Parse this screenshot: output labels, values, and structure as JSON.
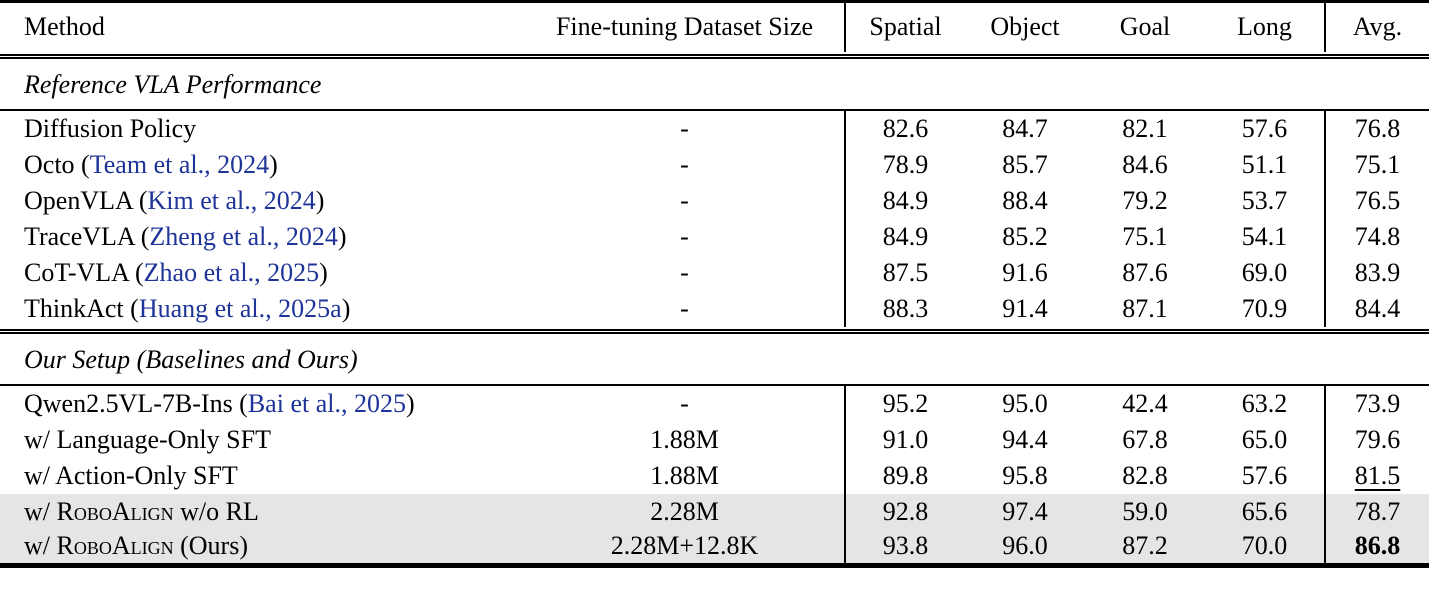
{
  "colors": {
    "citation": "#1f3499",
    "highlight_row": "#e5e5e5"
  },
  "table": {
    "columns": [
      {
        "label": "Method"
      },
      {
        "label": "Fine-tuning Dataset Size"
      },
      {
        "label": "Spatial"
      },
      {
        "label": "Object"
      },
      {
        "label": "Goal"
      },
      {
        "label": "Long"
      },
      {
        "label": "Avg."
      }
    ],
    "sections": [
      {
        "title": "Reference VLA Performance",
        "rows": [
          {
            "method": [
              {
                "t": "Diffusion Policy"
              }
            ],
            "dataset_size": "-",
            "values": [
              "82.6",
              "84.7",
              "82.1",
              "57.6"
            ],
            "avg": "76.8",
            "avg_style": null,
            "highlight": false
          },
          {
            "method": [
              {
                "t": "Octo ("
              },
              {
                "t": "Team et al., 2024",
                "style": "cite"
              },
              {
                "t": ")"
              }
            ],
            "dataset_size": "-",
            "values": [
              "78.9",
              "85.7",
              "84.6",
              "51.1"
            ],
            "avg": "75.1",
            "avg_style": null,
            "highlight": false
          },
          {
            "method": [
              {
                "t": "OpenVLA ("
              },
              {
                "t": "Kim et al., 2024",
                "style": "cite"
              },
              {
                "t": ")"
              }
            ],
            "dataset_size": "-",
            "values": [
              "84.9",
              "88.4",
              "79.2",
              "53.7"
            ],
            "avg": "76.5",
            "avg_style": null,
            "highlight": false
          },
          {
            "method": [
              {
                "t": "TraceVLA ("
              },
              {
                "t": "Zheng et al., 2024",
                "style": "cite"
              },
              {
                "t": ")"
              }
            ],
            "dataset_size": "-",
            "values": [
              "84.9",
              "85.2",
              "75.1",
              "54.1"
            ],
            "avg": "74.8",
            "avg_style": null,
            "highlight": false
          },
          {
            "method": [
              {
                "t": "CoT-VLA ("
              },
              {
                "t": "Zhao et al., 2025",
                "style": "cite"
              },
              {
                "t": ")"
              }
            ],
            "dataset_size": "-",
            "values": [
              "87.5",
              "91.6",
              "87.6",
              "69.0"
            ],
            "avg": "83.9",
            "avg_style": null,
            "highlight": false
          },
          {
            "method": [
              {
                "t": "ThinkAct ("
              },
              {
                "t": "Huang et al., 2025a",
                "style": "cite"
              },
              {
                "t": ")"
              }
            ],
            "dataset_size": "-",
            "values": [
              "88.3",
              "91.4",
              "87.1",
              "70.9"
            ],
            "avg": "84.4",
            "avg_style": null,
            "highlight": false
          }
        ]
      },
      {
        "title": "Our Setup (Baselines and Ours)",
        "rows": [
          {
            "method": [
              {
                "t": "Qwen2.5VL-7B-Ins ("
              },
              {
                "t": "Bai et al., 2025",
                "style": "cite"
              },
              {
                "t": ")"
              }
            ],
            "dataset_size": "-",
            "values": [
              "95.2",
              "95.0",
              "42.4",
              "63.2"
            ],
            "avg": "73.9",
            "avg_style": null,
            "highlight": false
          },
          {
            "method": [
              {
                "t": "w/ Language-Only SFT"
              }
            ],
            "dataset_size": "1.88M",
            "values": [
              "91.0",
              "94.4",
              "67.8",
              "65.0"
            ],
            "avg": "79.6",
            "avg_style": null,
            "highlight": false
          },
          {
            "method": [
              {
                "t": "w/ Action-Only SFT"
              }
            ],
            "dataset_size": "1.88M",
            "values": [
              "89.8",
              "95.8",
              "82.8",
              "57.6"
            ],
            "avg": "81.5",
            "avg_style": "underline",
            "highlight": false
          },
          {
            "method": [
              {
                "t": "w/ "
              },
              {
                "t": "RoboAlign",
                "style": "sc"
              },
              {
                "t": " w/o RL"
              }
            ],
            "dataset_size": "2.28M",
            "values": [
              "92.8",
              "97.4",
              "59.0",
              "65.6"
            ],
            "avg": "78.7",
            "avg_style": null,
            "highlight": true
          },
          {
            "method": [
              {
                "t": "w/ "
              },
              {
                "t": "RoboAlign",
                "style": "sc"
              },
              {
                "t": " (Ours)"
              }
            ],
            "dataset_size": "2.28M+12.8K",
            "values": [
              "93.8",
              "96.0",
              "87.2",
              "70.0"
            ],
            "avg": "86.8",
            "avg_style": "bold",
            "highlight": true
          }
        ]
      }
    ]
  }
}
